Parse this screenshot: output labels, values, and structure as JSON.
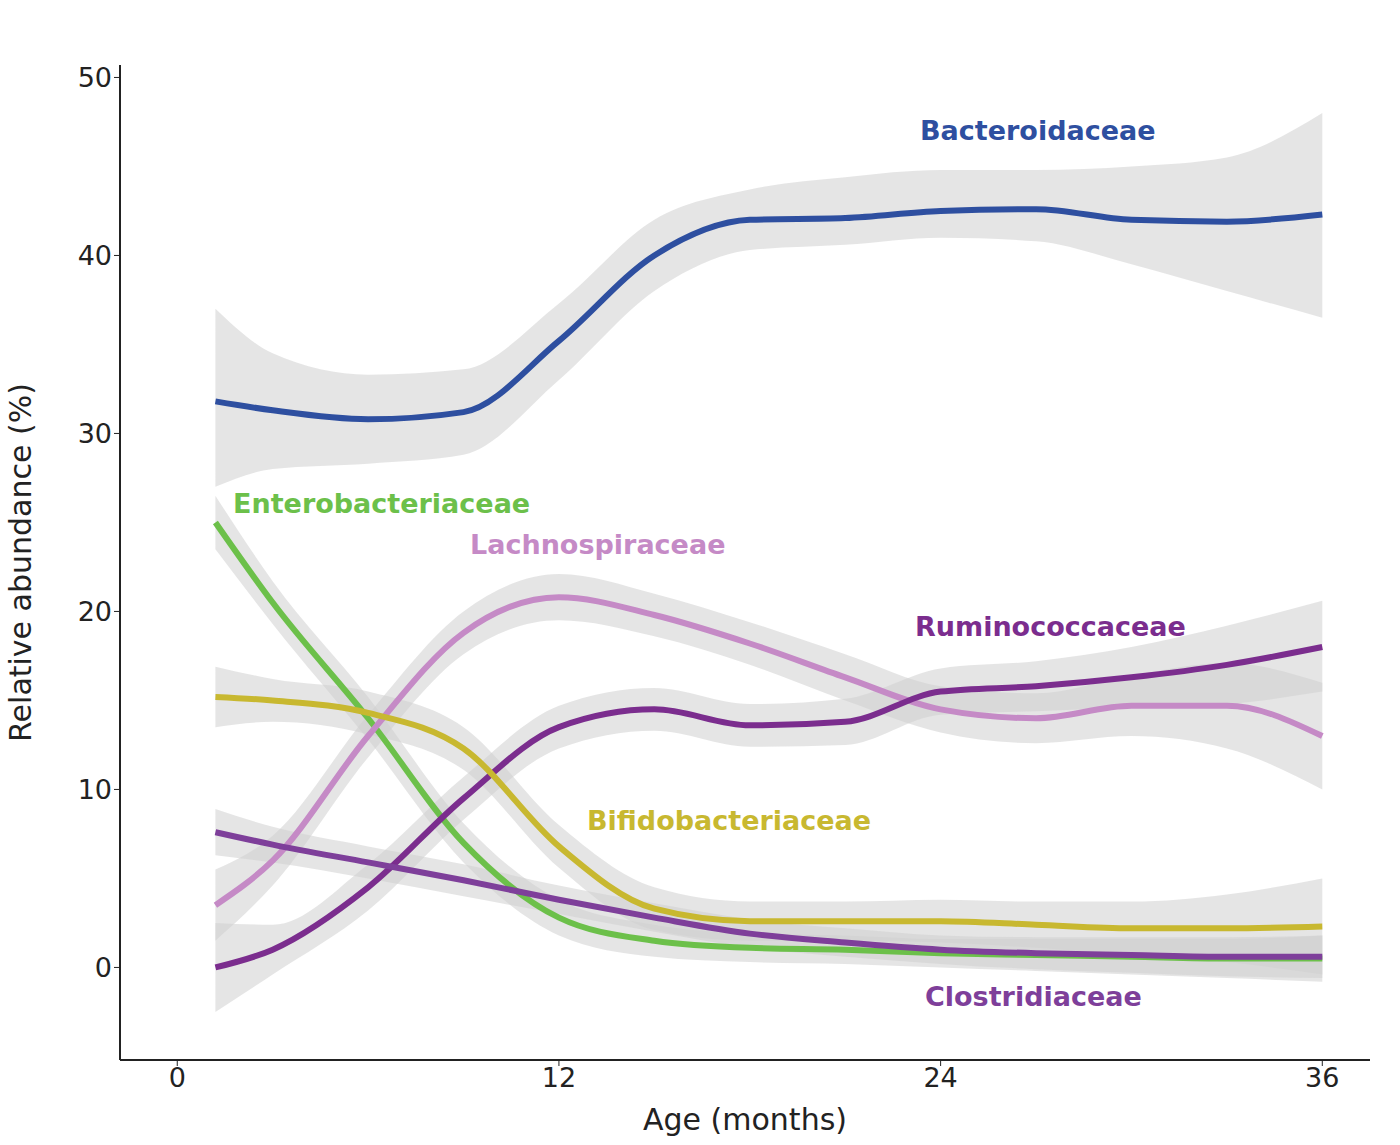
{
  "chart_data": {
    "type": "line",
    "x_label": "Age (months)",
    "y_label": "Relative abundance (%)",
    "x": [
      1.2,
      3,
      6,
      9,
      12,
      15,
      18,
      21,
      24,
      27,
      30,
      33,
      36
    ],
    "xlim": [
      -1.8,
      37.5
    ],
    "xticks": [
      0,
      12,
      24,
      36
    ],
    "ylim": [
      -5.2,
      50.7
    ],
    "yticks": [
      0,
      10,
      20,
      30,
      40,
      50
    ],
    "grid": false,
    "series": [
      {
        "name": "Bacteroidaceae",
        "color": "#2e4fa0",
        "values": [
          31.8,
          31.3,
          30.8,
          31.2,
          35.2,
          40.0,
          42.0,
          42.1,
          42.5,
          42.6,
          42.0,
          41.9,
          42.3
        ],
        "lower": [
          27,
          28,
          28.3,
          28.8,
          33,
          38,
          40.3,
          40.6,
          41,
          40.8,
          39.5,
          38,
          36.5
        ],
        "upper": [
          37,
          34.5,
          33.3,
          33.6,
          37.3,
          42,
          43.7,
          44.4,
          44.8,
          44.8,
          45,
          45.5,
          48
        ]
      },
      {
        "name": "Enterobacteriaceae",
        "color": "#6cc04a",
        "values": [
          25,
          20.5,
          14,
          7,
          2.8,
          1.5,
          1.1,
          1.0,
          0.8,
          0.7,
          0.6,
          0.5,
          0.5
        ],
        "lower": [
          23.5,
          19.3,
          12.8,
          5.9,
          1.8,
          0.6,
          0.3,
          0.2,
          0,
          -0.2,
          -0.4,
          -0.6,
          -0.8
        ],
        "upper": [
          26.5,
          21.7,
          15.2,
          8.1,
          3.8,
          2.4,
          1.9,
          1.8,
          1.6,
          1.6,
          1.6,
          1.6,
          1.8
        ]
      },
      {
        "name": "Lachnospiraceae",
        "color": "#c58ac6",
        "values": [
          3.5,
          6,
          13,
          18.8,
          20.8,
          19.8,
          18.2,
          16.3,
          14.5,
          14.0,
          14.7,
          14.7,
          13.0
        ],
        "lower": [
          1.5,
          4.6,
          11.8,
          17.6,
          19.5,
          18.6,
          17,
          15,
          13.2,
          12.6,
          13,
          12.3,
          10
        ],
        "upper": [
          5.5,
          7.4,
          14.2,
          20,
          22.1,
          21,
          19.4,
          17.6,
          15.8,
          15.4,
          16.4,
          17.1,
          16
        ]
      },
      {
        "name": "Ruminococcaceae",
        "color": "#7b2d8e",
        "values": [
          0,
          1.0,
          4.5,
          9.5,
          13.5,
          14.5,
          13.6,
          13.8,
          15.5,
          15.8,
          16.3,
          17.0,
          18
        ],
        "lower": [
          -2.5,
          -0.4,
          3.2,
          8.3,
          12.3,
          13.3,
          12.4,
          12.5,
          14.2,
          14.4,
          14.6,
          14.8,
          15.5
        ],
        "upper": [
          2.5,
          2.4,
          5.8,
          10.7,
          14.7,
          15.7,
          14.8,
          15.1,
          16.8,
          17.2,
          18,
          19.2,
          20.6
        ]
      },
      {
        "name": "Bifidobacteriaceae",
        "color": "#c8b830",
        "values": [
          15.2,
          15,
          14.3,
          12.3,
          6.8,
          3.3,
          2.6,
          2.6,
          2.6,
          2.4,
          2.2,
          2.2,
          2.3
        ],
        "lower": [
          13.5,
          13.8,
          13.1,
          11.1,
          5.6,
          2.1,
          1.5,
          1.5,
          1.4,
          1.1,
          0.7,
          0.3,
          -0.4
        ],
        "upper": [
          16.9,
          16.2,
          15.5,
          13.5,
          8,
          4.5,
          3.7,
          3.7,
          3.8,
          3.7,
          3.7,
          4.1,
          5
        ]
      },
      {
        "name": "Clostridiaceae",
        "color": "#7e3f9a",
        "values": [
          7.6,
          6.9,
          5.9,
          4.9,
          3.8,
          2.8,
          1.9,
          1.4,
          1.0,
          0.8,
          0.7,
          0.6,
          0.6
        ],
        "lower": [
          6.3,
          5.9,
          5,
          4,
          3,
          2,
          1.1,
          0.6,
          0.2,
          -0.1,
          -0.3,
          -0.5,
          -0.6
        ],
        "upper": [
          8.9,
          7.9,
          6.8,
          5.8,
          4.6,
          3.6,
          2.7,
          2.2,
          1.8,
          1.7,
          1.7,
          1.7,
          1.8
        ]
      }
    ]
  }
}
